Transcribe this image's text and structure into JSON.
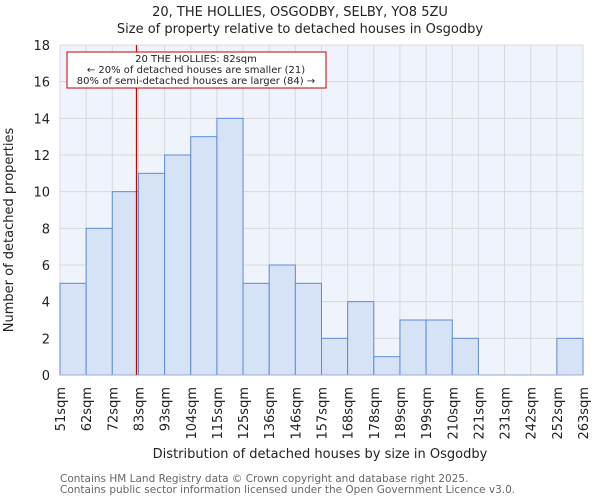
{
  "chart_data": {
    "type": "bar",
    "title": "20, THE HOLLIES, OSGODBY, SELBY, YO8 5ZU",
    "subtitle": "Size of property relative to detached houses in Osgodby",
    "xlabel": "Distribution of detached houses by size in Osgodby",
    "ylabel": "Number of detached properties",
    "bin_edges": [
      "51sqm",
      "62sqm",
      "72sqm",
      "83sqm",
      "93sqm",
      "104sqm",
      "115sqm",
      "125sqm",
      "136sqm",
      "146sqm",
      "157sqm",
      "168sqm",
      "178sqm",
      "189sqm",
      "199sqm",
      "210sqm",
      "221sqm",
      "231sqm",
      "242sqm",
      "252sqm",
      "263sqm"
    ],
    "values": [
      5,
      8,
      10,
      11,
      12,
      13,
      14,
      5,
      6,
      5,
      2,
      4,
      1,
      3,
      3,
      2,
      0,
      0,
      0,
      2
    ],
    "ylim": [
      0,
      18
    ],
    "yticks": [
      0,
      2,
      4,
      6,
      8,
      10,
      12,
      14,
      16,
      18
    ],
    "xrange": [
      51,
      263
    ],
    "grid": true,
    "marker": {
      "value": 82,
      "color": "#cc0000"
    },
    "annotation": {
      "line1": "20 THE HOLLIES: 82sqm",
      "line2": "← 20% of detached houses are smaller (21)",
      "line3": "80% of semi-detached houses are larger (84) →"
    },
    "colors": {
      "bar_fill": "#d6e2f5",
      "bar_stroke": "#5b8dd6",
      "plot_bg": "#eff3fb"
    }
  },
  "footer": {
    "line1": "Contains HM Land Registry data © Crown copyright and database right 2025.",
    "line2": "Contains public sector information licensed under the Open Government Licence v3.0."
  }
}
